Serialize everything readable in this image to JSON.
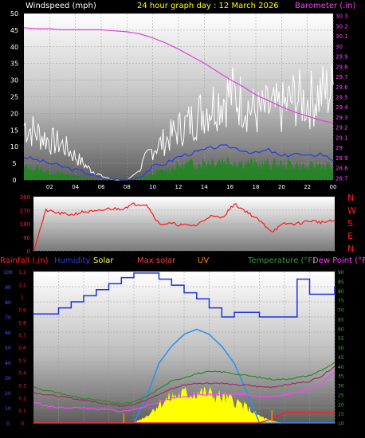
{
  "header": {
    "left_label": "Windspeed (mph)",
    "center_label": "24 hour graph day : 12 March 2026",
    "right_label": "Barometer (.in)"
  },
  "bottom_header": {
    "rainfall": "Rainfall (.in)",
    "humidity": "Humidity",
    "solar": "Solar",
    "max_solar": "Max solar",
    "uv": "UV",
    "temperature": "Temperature (°F)",
    "dew_point": "Dew Point (°F)"
  },
  "wind_dir_letters": [
    "N",
    "W",
    "S",
    "E",
    "N"
  ],
  "colors": {
    "wind_gust": "#ffffff",
    "wind_avg": "#2a3de0",
    "wind_speed_fill": "#1e8a1e",
    "barometer": "#e040e0",
    "wind_dir": "#ff1a1a",
    "humidity": "#2030e0",
    "solar": "#ffff00",
    "max_solar": "#2a90f0",
    "rain": "#ff2020",
    "temperature": "#2a8a2a",
    "temperature2": "#a03060",
    "dew_point": "#ff40ff",
    "uv": "#ff8800"
  },
  "chart_data": [
    {
      "type": "line",
      "title": "24 hour graph day : 12 March 2026",
      "x_tick_labels": [
        "02",
        "04",
        "06",
        "08",
        "10",
        "12",
        "14",
        "16",
        "18",
        "20",
        "22",
        "00"
      ],
      "y_left_label": "Windspeed (mph)",
      "y_left_ticks": [
        "0",
        "5",
        "10",
        "15",
        "20",
        "25",
        "30",
        "35",
        "40",
        "45",
        "50"
      ],
      "y_left_range": [
        0,
        50
      ],
      "y_right_label": "Barometer (.in)",
      "y_right_ticks": [
        "28.7",
        "28.8",
        "28.9",
        "29",
        "29.1",
        "29.2",
        "29.3",
        "29.4",
        "29.5",
        "29.6",
        "29.7",
        "29.8",
        "29.9",
        "30",
        "30.1",
        "30.2",
        "30.3"
      ],
      "y_right_range": [
        28.68,
        30.32
      ],
      "hours": [
        0,
        1,
        2,
        3,
        4,
        5,
        6,
        7,
        8,
        9,
        10,
        11,
        12,
        13,
        14,
        15,
        16,
        17,
        18,
        19,
        20,
        21,
        22,
        23,
        24
      ],
      "series": [
        {
          "name": "gust",
          "values": [
            14,
            12,
            10,
            9,
            6,
            3,
            1,
            0,
            0,
            3,
            8,
            10,
            13,
            15,
            18,
            20,
            22,
            20,
            17,
            18,
            18,
            21,
            20,
            22,
            23
          ]
        },
        {
          "name": "average",
          "values": [
            7,
            6,
            5,
            4,
            3,
            2,
            0.5,
            0,
            0,
            1,
            4,
            5,
            7,
            8,
            9,
            10,
            10,
            9,
            8,
            9,
            7,
            8,
            7,
            8,
            6
          ]
        },
        {
          "name": "speed",
          "values": [
            3,
            3,
            2,
            1.5,
            1,
            0.5,
            0,
            0,
            0,
            0.5,
            1.5,
            2.5,
            3.5,
            4,
            4.5,
            5,
            5,
            4.5,
            4,
            4,
            4,
            4,
            3,
            4,
            3
          ]
        },
        {
          "name": "barometer",
          "values": [
            30.18,
            30.17,
            30.17,
            30.16,
            30.16,
            30.16,
            30.16,
            30.15,
            30.14,
            30.12,
            30.08,
            30.03,
            29.97,
            29.9,
            29.83,
            29.75,
            29.67,
            29.6,
            29.52,
            29.46,
            29.4,
            29.35,
            29.31,
            29.27,
            29.24
          ]
        }
      ]
    },
    {
      "type": "line",
      "y_left_ticks": [
        "0",
        "90",
        "180",
        "270",
        "360"
      ],
      "y_range": [
        0,
        360
      ],
      "series": [
        {
          "name": "wind direction",
          "values": [
            0,
            270,
            250,
            240,
            260,
            260,
            280,
            280,
            310,
            310,
            180,
            180,
            170,
            170,
            230,
            220,
            310,
            260,
            200,
            130,
            180,
            180,
            200,
            190,
            200
          ]
        }
      ]
    },
    {
      "type": "line",
      "x_tick_labels": [
        "02",
        "04",
        "06",
        "08",
        "10",
        "12",
        "14",
        "16",
        "18",
        "20",
        "22",
        "00"
      ],
      "y_rain_ticks": [
        "0",
        "0.1",
        "0.2",
        "0.3",
        "0.4",
        "0.5",
        "0.6",
        "0.7",
        "0.8",
        "0.9",
        "1",
        "1.1",
        "1.2"
      ],
      "y_humidity_ticks": [
        "0",
        "10",
        "20",
        "30",
        "40",
        "50",
        "60",
        "70",
        "80",
        "90",
        "100"
      ],
      "y_temp_ticks": [
        "10",
        "15",
        "20",
        "25",
        "30",
        "35",
        "40",
        "45",
        "50",
        "55",
        "60",
        "65",
        "70",
        "75",
        "80",
        "85",
        "90"
      ],
      "series": [
        {
          "name": "Humidity",
          "values": [
            72,
            72,
            76,
            80,
            84,
            88,
            92,
            96,
            99,
            99,
            95,
            91,
            86,
            82,
            76,
            70,
            73,
            73,
            70,
            70,
            70,
            95,
            85,
            85,
            90
          ]
        },
        {
          "name": "Solar",
          "values": [
            0,
            0,
            0,
            0,
            0,
            0,
            0,
            0,
            0,
            4,
            11,
            15,
            17,
            18,
            17,
            15,
            13,
            9,
            4,
            1,
            0,
            0,
            0,
            0,
            0
          ]
        },
        {
          "name": "Max solar",
          "values": [
            0,
            0,
            0,
            0,
            0,
            0,
            0,
            0,
            0,
            15,
            35,
            45,
            52,
            55,
            52,
            45,
            35,
            18,
            0,
            0,
            0,
            0,
            0,
            0,
            0
          ]
        },
        {
          "name": "Temperature",
          "values": [
            29,
            27,
            26,
            24,
            23,
            22,
            21,
            20,
            21,
            24,
            28,
            32,
            34,
            36,
            37,
            37,
            36,
            35,
            34,
            33,
            33,
            34,
            35,
            38,
            42
          ]
        },
        {
          "name": "Temperature2",
          "values": [
            26,
            25,
            24,
            23,
            22,
            21,
            20,
            19,
            20,
            22,
            25,
            28,
            30,
            31,
            31,
            31,
            30,
            30,
            29,
            29,
            30,
            31,
            32,
            35,
            40
          ]
        },
        {
          "name": "Dew Point",
          "values": [
            21,
            19,
            18,
            18,
            18,
            17,
            17,
            16,
            17,
            19,
            21,
            23,
            24,
            25,
            25,
            25,
            25,
            25,
            24,
            24,
            25,
            26,
            28,
            31,
            37
          ]
        },
        {
          "name": "Rainfall",
          "values": [
            0,
            0,
            0,
            0,
            0,
            0,
            0,
            0,
            0,
            0,
            0,
            0,
            0,
            0,
            0,
            0,
            0,
            0,
            0,
            0.03,
            0.08,
            0.08,
            0.08,
            0.08,
            0.08
          ]
        }
      ]
    }
  ]
}
